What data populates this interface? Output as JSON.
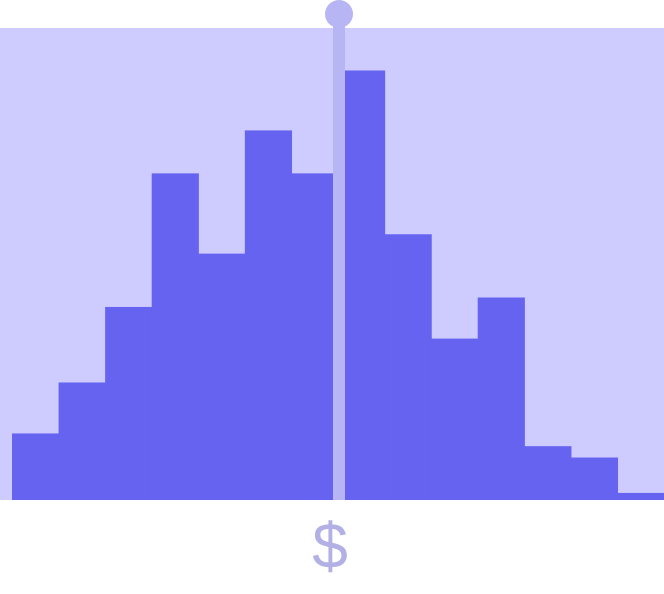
{
  "slider": {
    "label": "$",
    "handle_position_fraction": 0.5,
    "colors": {
      "track": "#b8b5f5",
      "handle": "#b8b5f5"
    }
  },
  "colors": {
    "background": "#ffffff",
    "panel": "#cecbff",
    "bars": "#6563ef",
    "label": "#b3b0e6"
  },
  "chart_data": {
    "type": "bar",
    "bar_heights_relative": [
      0.141,
      0.249,
      0.409,
      0.692,
      0.522,
      0.783,
      0.692,
      0.91,
      0.563,
      0.342,
      0.429,
      0.114,
      0.09,
      0.015
    ],
    "ylim": [
      0,
      1
    ],
    "grid": false
  }
}
